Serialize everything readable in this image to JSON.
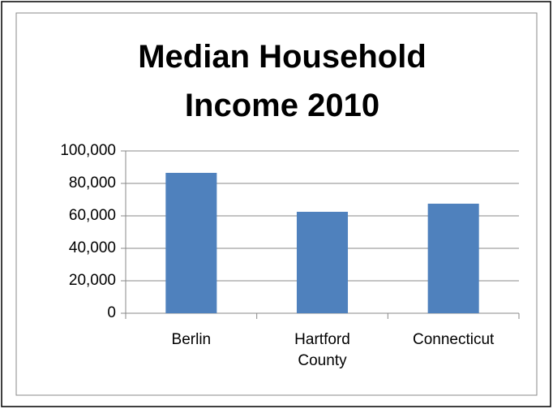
{
  "chart_data": {
    "type": "bar",
    "title": "Median Household Income 2010",
    "categories": [
      "Berlin",
      "Hartford County",
      "Connecticut"
    ],
    "values": [
      86500,
      62500,
      67500
    ],
    "color": "#4f81bd",
    "ylim": [
      0,
      100000
    ],
    "yticks": [
      0,
      {
        "value": 20000,
        "label": "20,000"
      },
      {
        "value": 40000,
        "label": "40,000"
      },
      {
        "value": 60000,
        "label": "60,000"
      },
      {
        "value": 80000,
        "label": "80,000"
      },
      {
        "value": 100000,
        "label": "100,000"
      }
    ],
    "grid": true
  }
}
